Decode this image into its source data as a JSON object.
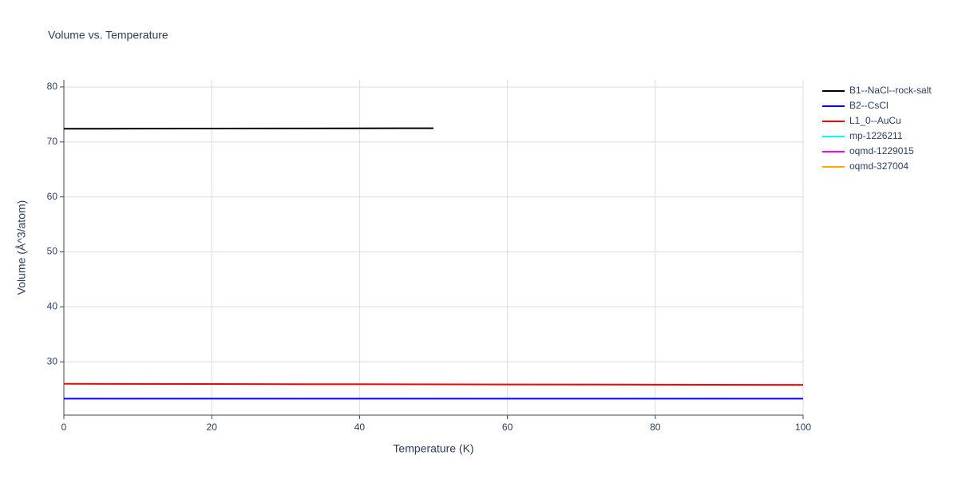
{
  "chart_data": {
    "type": "line",
    "title": "Volume vs. Temperature",
    "x_label": "Temperature (K)",
    "y_label": "Volume (Å^3/atom)",
    "xlim": [
      0,
      100
    ],
    "xticks": [
      0,
      20,
      40,
      60,
      80,
      100
    ],
    "ylim": [
      20.3,
      81.3
    ],
    "yticks": [
      30,
      40,
      50,
      60,
      70,
      80
    ],
    "grid": true,
    "legend": "right",
    "series": [
      {
        "name": "B1--NaCl--rock-salt",
        "color": "#000000",
        "x": [
          0,
          10,
          20,
          30,
          40,
          50
        ],
        "values": [
          72.4,
          72.42,
          72.44,
          72.46,
          72.48,
          72.5
        ]
      },
      {
        "name": "B2--CsCl",
        "color": "#0000ff",
        "x": [
          0,
          20,
          40,
          60,
          80,
          100
        ],
        "values": [
          23.3,
          23.3,
          23.3,
          23.3,
          23.3,
          23.3
        ]
      },
      {
        "name": "L1_0--AuCu",
        "color": "#ff0000",
        "x": [
          0,
          20,
          40,
          60,
          80,
          100
        ],
        "values": [
          26.0,
          25.96,
          25.92,
          25.88,
          25.84,
          25.8
        ]
      },
      {
        "name": "mp-1226211",
        "color": "#00ffff",
        "x": [],
        "values": []
      },
      {
        "name": "oqmd-1229015",
        "color": "#ff00ff",
        "x": [],
        "values": []
      },
      {
        "name": "oqmd-327004",
        "color": "#ffa500",
        "x": [],
        "values": []
      }
    ]
  }
}
